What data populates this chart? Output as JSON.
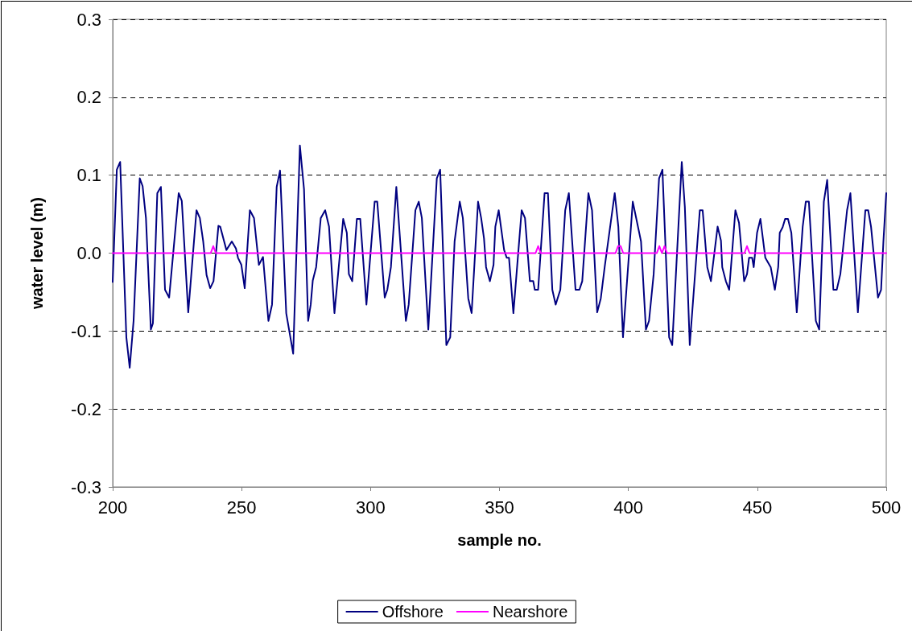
{
  "chart_data": {
    "type": "line",
    "xlabel": "sample no.",
    "ylabel": "water level (m)",
    "xlim": [
      200,
      500
    ],
    "xticks": [
      200,
      250,
      300,
      350,
      400,
      450,
      500
    ],
    "ylim": [
      -0.3,
      0.3
    ],
    "yticks": [
      {
        "value": -0.3,
        "label": "-0.3"
      },
      {
        "value": -0.2,
        "label": "-0.2"
      },
      {
        "value": -0.1,
        "label": "-0.1"
      },
      {
        "value": 0,
        "label": "0.0"
      },
      {
        "value": 0.1,
        "label": "0.1"
      },
      {
        "value": 0.2,
        "label": "0.2"
      },
      {
        "value": 0.3,
        "label": "0.3"
      }
    ],
    "grid": "y",
    "legend": "bottom",
    "marker": "none",
    "line_style": "solid",
    "series": [
      {
        "name": "Offshore",
        "color": "#000080",
        "x": [
          200,
          201.6,
          202.9,
          205.3,
          206.6,
          208.1,
          210.5,
          211.6,
          212.9,
          214.8,
          215.6,
          217.3,
          218.7,
          220.3,
          221.9,
          225.6,
          226.8,
          229.3,
          232.5,
          233.8,
          235.1,
          236.4,
          237.8,
          239.1,
          241,
          241.7,
          244.1,
          246.2,
          247.8,
          248.6,
          249.9,
          251.2,
          253.2,
          254.8,
          256.7,
          258.3,
          260.4,
          261.8,
          263.6,
          264.9,
          267.3,
          270,
          272.6,
          274.2,
          275.8,
          276.8,
          277.6,
          278.9,
          280.7,
          282.4,
          283.9,
          286,
          289.4,
          290.8,
          291.6,
          292.9,
          294.7,
          296,
          298.4,
          301.6,
          302.6,
          305.5,
          306.5,
          307.9,
          310,
          313.7,
          314.8,
          317.4,
          318.7,
          319.9,
          322.4,
          325.7,
          327,
          329.4,
          330.9,
          332.6,
          334.6,
          335.8,
          337.9,
          339.2,
          341.7,
          342.9,
          344,
          344.8,
          346.3,
          347.7,
          348.4,
          349.7,
          351.8,
          352.8,
          353.7,
          355.4,
          358.6,
          359.9,
          361.8,
          363.1,
          363.7,
          365,
          367.5,
          368.8,
          370.5,
          371.8,
          373.6,
          375.5,
          376.9,
          379.5,
          381,
          382.1,
          384.5,
          385.9,
          387.9,
          389.3,
          390.8,
          394.7,
          396.1,
          397.9,
          401.7,
          404.9,
          406.8,
          408,
          409.8,
          411.9,
          413.2,
          415.8,
          417,
          420.7,
          421.9,
          423.8,
          427.7,
          428.8,
          430.6,
          432,
          434.6,
          435.9,
          436.4,
          437.8,
          439.1,
          441.5,
          442.9,
          444.9,
          446,
          446.8,
          448,
          448.6,
          449.9,
          451.2,
          453.1,
          455.2,
          456.8,
          458.1,
          458.7,
          459.8,
          460.8,
          461.9,
          463.2,
          465.3,
          467.6,
          468.8,
          470,
          472.7,
          474,
          475.8,
          477.1,
          479.5,
          480.8,
          482.2,
          484.8,
          486.1,
          489,
          491.9,
          493,
          494.1,
          496.8,
          498,
          498.9,
          500
        ],
        "values": [
          -0.037,
          0.107,
          0.117,
          -0.108,
          -0.147,
          -0.087,
          0.096,
          0.086,
          0.045,
          -0.098,
          -0.09,
          0.077,
          0.085,
          -0.047,
          -0.057,
          0.077,
          0.067,
          -0.076,
          0.055,
          0.045,
          0.015,
          -0.028,
          -0.045,
          -0.036,
          0.035,
          0.034,
          0.004,
          0.015,
          0.006,
          -0.006,
          -0.015,
          -0.045,
          0.055,
          0.045,
          -0.015,
          -0.005,
          -0.087,
          -0.066,
          0.085,
          0.106,
          -0.077,
          -0.129,
          0.138,
          0.082,
          -0.087,
          -0.066,
          -0.035,
          -0.018,
          0.045,
          0.055,
          0.034,
          -0.077,
          0.044,
          0.026,
          -0.027,
          -0.036,
          0.044,
          0.044,
          -0.066,
          0.066,
          0.066,
          -0.057,
          -0.047,
          -0.018,
          0.085,
          -0.087,
          -0.066,
          0.055,
          0.066,
          0.045,
          -0.098,
          0.096,
          0.107,
          -0.118,
          -0.108,
          0.015,
          0.066,
          0.045,
          -0.058,
          -0.077,
          0.066,
          0.045,
          0.019,
          -0.018,
          -0.036,
          -0.015,
          0.034,
          0.055,
          0.004,
          -0.006,
          -0.006,
          -0.077,
          0.055,
          0.045,
          -0.036,
          -0.036,
          -0.047,
          -0.047,
          0.077,
          0.077,
          -0.047,
          -0.066,
          -0.047,
          0.055,
          0.077,
          -0.047,
          -0.047,
          -0.036,
          0.077,
          0.055,
          -0.076,
          -0.058,
          -0.018,
          0.077,
          0.034,
          -0.108,
          0.066,
          0.015,
          -0.098,
          -0.087,
          -0.027,
          0.096,
          0.107,
          -0.108,
          -0.118,
          0.117,
          0.059,
          -0.118,
          0.055,
          0.055,
          -0.018,
          -0.036,
          0.034,
          0.016,
          -0.018,
          -0.036,
          -0.047,
          0.055,
          0.039,
          -0.036,
          -0.027,
          -0.006,
          -0.006,
          -0.018,
          0.026,
          0.044,
          -0.006,
          -0.018,
          -0.047,
          -0.018,
          0.026,
          0.033,
          0.044,
          0.044,
          0.026,
          -0.076,
          0.034,
          0.066,
          0.066,
          -0.087,
          -0.098,
          0.066,
          0.094,
          -0.047,
          -0.047,
          -0.027,
          0.055,
          0.077,
          -0.076,
          0.055,
          0.055,
          0.034,
          -0.057,
          -0.047,
          0.015,
          0.077
        ]
      },
      {
        "name": "Nearshore",
        "color": "#ff00ff",
        "x": [
          200,
          238,
          239,
          240,
          364,
          365,
          366,
          395,
          396,
          397,
          398,
          411,
          412,
          413,
          414,
          415,
          445,
          446,
          447,
          500
        ],
        "values": [
          0,
          0,
          0.009,
          0,
          0,
          0.009,
          0,
          0,
          0.009,
          0.009,
          0,
          0,
          0.009,
          0,
          0.009,
          0,
          0,
          0.009,
          0,
          0
        ]
      }
    ]
  }
}
